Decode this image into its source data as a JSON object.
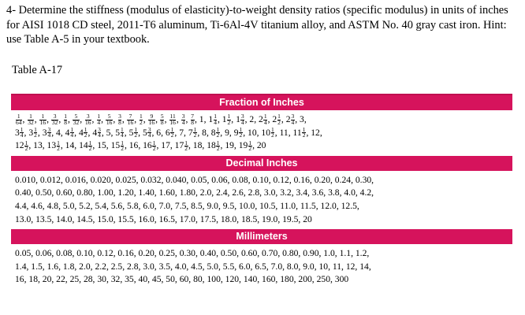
{
  "question": {
    "text": "4- Determine the stiffness (modulus of elasticity)-to-weight density ratios (specific modulus) in units of inches for AISI 1018 CD steel, 2011-T6 aluminum, Ti-6Al-4V titanium alloy, and ASTM No. 40 gray cast iron. Hint: use Table A-5 in your textbook."
  },
  "table": {
    "label": "Table A-17",
    "fraction_header": "Fraction of Inches",
    "fraction_rows": [
      [
        [
          "1",
          "64"
        ],
        [
          "1",
          "32"
        ],
        [
          "1",
          "16"
        ],
        [
          "3",
          "32"
        ],
        [
          "1",
          "8"
        ],
        [
          "5",
          "32"
        ],
        [
          "3",
          "16"
        ],
        [
          "1",
          "4"
        ],
        [
          "5",
          "16"
        ],
        [
          "3",
          "8"
        ],
        [
          "7",
          "16"
        ],
        [
          "1",
          "2"
        ],
        [
          "9",
          "16"
        ],
        [
          "5",
          "8"
        ],
        [
          "11",
          "16"
        ],
        [
          "3",
          "4"
        ],
        [
          "7",
          "8"
        ],
        "1",
        [
          "1",
          "1",
          "4"
        ],
        [
          "1",
          "1",
          "2"
        ],
        [
          "1",
          "3",
          "4"
        ],
        "2",
        [
          "2",
          "1",
          "4"
        ],
        [
          "2",
          "1",
          "2"
        ],
        [
          "2",
          "3",
          "4"
        ],
        "3"
      ],
      [
        [
          "3",
          "1",
          "4"
        ],
        [
          "3",
          "1",
          "2"
        ],
        [
          "3",
          "3",
          "4"
        ],
        "4",
        [
          "4",
          "1",
          "4"
        ],
        [
          "4",
          "1",
          "2"
        ],
        [
          "4",
          "3",
          "4"
        ],
        "5",
        [
          "5",
          "1",
          "4"
        ],
        [
          "5",
          "1",
          "2"
        ],
        [
          "5",
          "3",
          "4"
        ],
        "6",
        [
          "6",
          "1",
          "2"
        ],
        "7",
        [
          "7",
          "1",
          "2"
        ],
        "8",
        [
          "8",
          "1",
          "2"
        ],
        "9",
        [
          "9",
          "1",
          "2"
        ],
        "10",
        [
          "10",
          "1",
          "2"
        ],
        "11",
        [
          "11",
          "1",
          "2"
        ],
        "12"
      ],
      [
        [
          "12",
          "1",
          "2"
        ],
        "13",
        [
          "13",
          "1",
          "2"
        ],
        "14",
        [
          "14",
          "1",
          "2"
        ],
        "15",
        [
          "15",
          "1",
          "2"
        ],
        "16",
        [
          "16",
          "1",
          "2"
        ],
        "17",
        [
          "17",
          "1",
          "2"
        ],
        "18",
        [
          "18",
          "1",
          "2"
        ],
        "19",
        [
          "19",
          "1",
          "2"
        ],
        "20"
      ]
    ],
    "decimal_header": "Decimal Inches",
    "decimal_rows": [
      "0.010, 0.012, 0.016, 0.020, 0.025, 0.032, 0.040, 0.05, 0.06, 0.08, 0.10, 0.12, 0.16, 0.20, 0.24, 0.30,",
      "0.40, 0.50, 0.60, 0.80, 1.00, 1.20, 1.40, 1.60, 1.80, 2.0, 2.4, 2.6, 2.8, 3.0, 3.2, 3.4, 3.6, 3.8, 4.0, 4.2,",
      "4.4, 4.6, 4.8, 5.0, 5.2, 5.4, 5.6, 5.8, 6.0, 7.0, 7.5, 8.5, 9.0, 9.5, 10.0, 10.5, 11.0, 11.5, 12.0, 12.5,",
      "13.0, 13.5, 14.0, 14.5, 15.0, 15.5, 16.0, 16.5, 17.0, 17.5, 18.0, 18.5, 19.0, 19.5, 20"
    ],
    "mm_header": "Millimeters",
    "mm_rows": [
      "0.05, 0.06, 0.08, 0.10, 0.12, 0.16, 0.20, 0.25, 0.30, 0.40, 0.50, 0.60, 0.70, 0.80, 0.90, 1.0, 1.1, 1.2,",
      "1.4, 1.5, 1.6, 1.8, 2.0, 2.2, 2.5, 2.8, 3.0, 3.5, 4.0, 4.5, 5.0, 5.5, 6.0, 6.5, 7.0, 8.0, 9.0, 10, 11, 12, 14,",
      "16, 18, 20, 22, 25, 28, 30, 32, 35, 40, 45, 50, 60, 80, 100, 120, 140, 160, 180, 200, 250, 300"
    ],
    "header_color": "#d6135c"
  }
}
